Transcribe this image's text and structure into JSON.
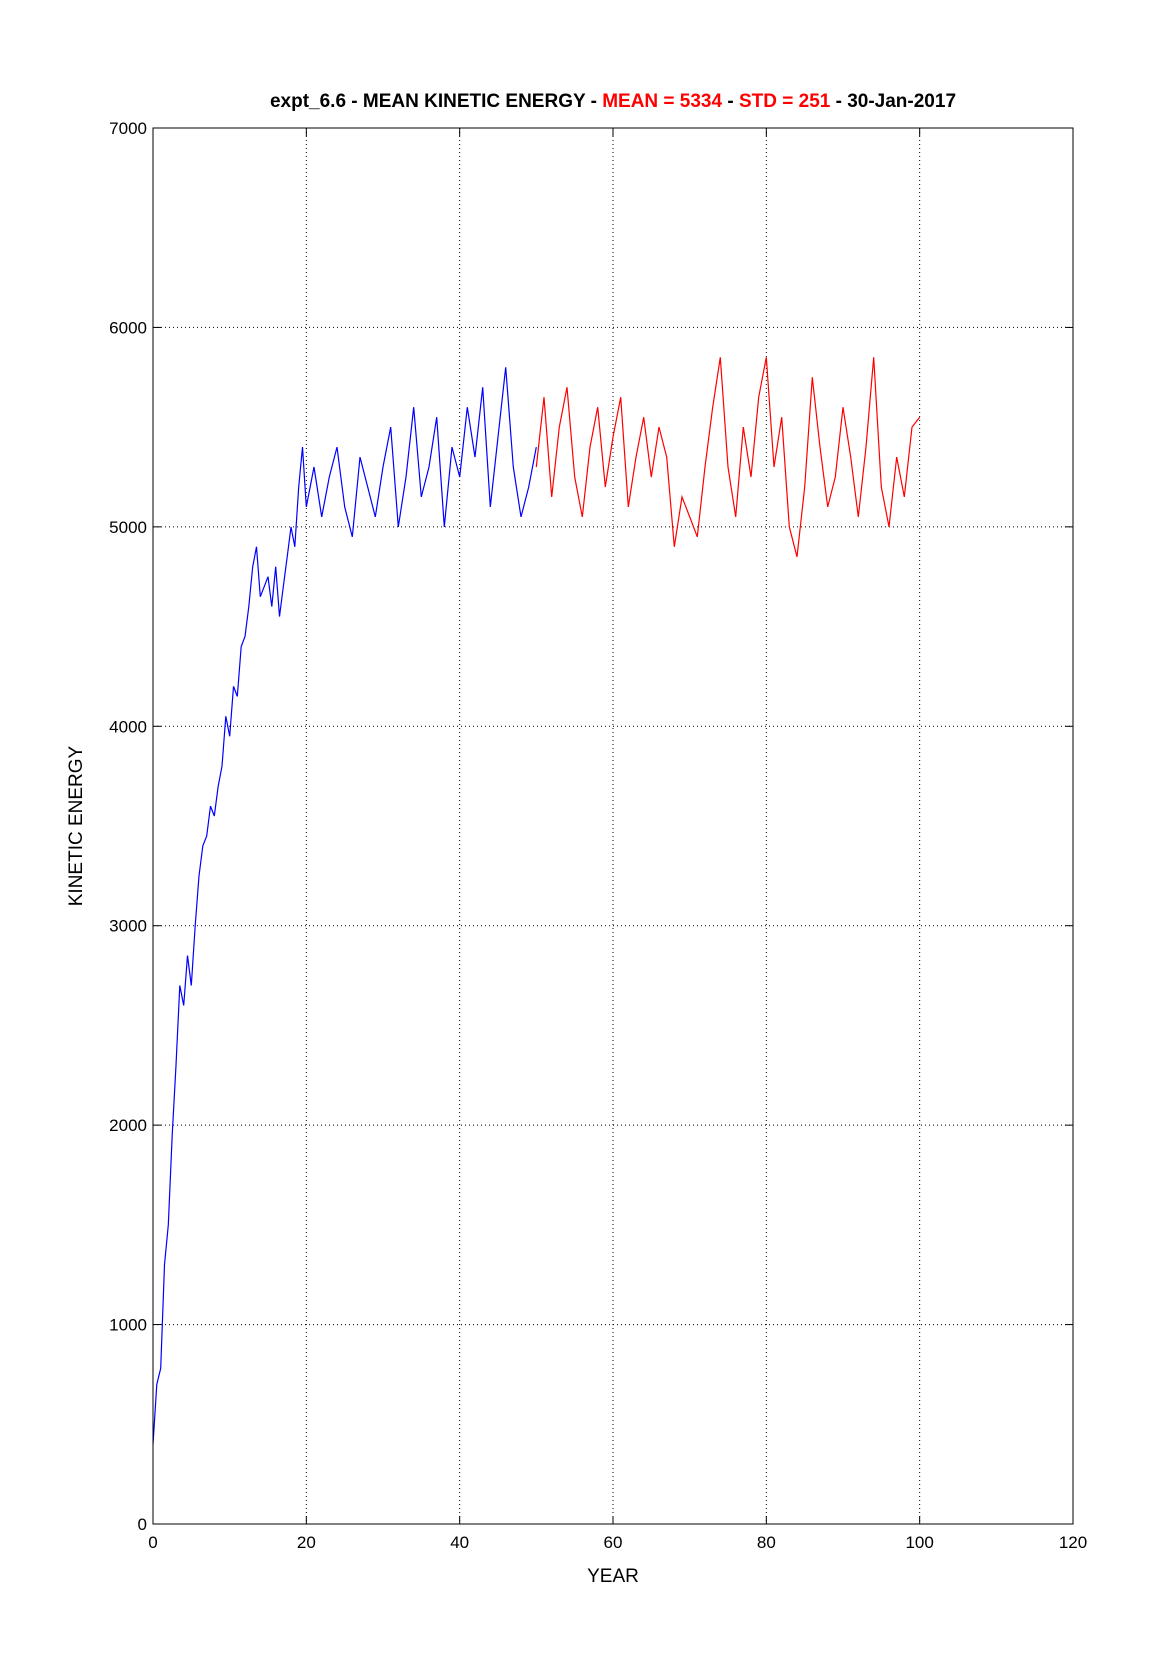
{
  "chart_data": {
    "type": "line",
    "title_parts": [
      {
        "text": "expt_6.6 - MEAN KINETIC ENERGY - ",
        "color": "#000000"
      },
      {
        "text": "MEAN = 5334",
        "color": "#ff0000"
      },
      {
        "text": " - ",
        "color": "#000000"
      },
      {
        "text": "STD = 251",
        "color": "#ff0000"
      },
      {
        "text": " - 30-Jan-2017",
        "color": "#000000"
      }
    ],
    "xlabel": "YEAR",
    "ylabel": "KINETIC ENERGY",
    "xlim": [
      0,
      120
    ],
    "ylim": [
      0,
      7000
    ],
    "xticks": [
      0,
      20,
      40,
      60,
      80,
      100,
      120
    ],
    "yticks": [
      0,
      1000,
      2000,
      3000,
      4000,
      5000,
      6000,
      7000
    ],
    "grid": true,
    "series": [
      {
        "color": "#0000ff",
        "x": [
          0,
          0.5,
          1,
          1.5,
          2,
          2.5,
          3,
          3.5,
          4,
          4.5,
          5,
          5.5,
          6,
          6.5,
          7,
          7.5,
          8,
          8.5,
          9,
          9.5,
          10,
          10.5,
          11,
          11.5,
          12,
          12.5,
          13,
          13.5,
          14,
          14.5,
          15,
          15.5,
          16,
          16.5,
          17,
          17.5,
          18,
          18.5,
          19,
          19.5,
          20,
          21,
          22,
          23,
          24,
          25,
          26,
          27,
          28,
          29,
          30,
          31,
          32,
          33,
          34,
          35,
          36,
          37,
          38,
          39,
          40,
          41,
          42,
          43,
          44,
          45,
          46,
          47,
          48,
          49,
          50
        ],
        "values": [
          400,
          700,
          780,
          1300,
          1500,
          1950,
          2300,
          2700,
          2600,
          2850,
          2700,
          3000,
          3250,
          3400,
          3450,
          3600,
          3550,
          3700,
          3800,
          4050,
          3950,
          4200,
          4150,
          4400,
          4450,
          4600,
          4800,
          4900,
          4650,
          4700,
          4750,
          4600,
          4800,
          4550,
          4700,
          4850,
          5000,
          4900,
          5200,
          5400,
          5100,
          5300,
          5050,
          5250,
          5400,
          5100,
          4950,
          5350,
          5200,
          5050,
          5300,
          5500,
          5000,
          5250,
          5600,
          5150,
          5300,
          5550,
          5000,
          5400,
          5250,
          5600,
          5350,
          5700,
          5100,
          5450,
          5800,
          5300,
          5050,
          5200,
          5400
        ]
      },
      {
        "color": "#ff0000",
        "x": [
          50,
          51,
          52,
          53,
          54,
          55,
          56,
          57,
          58,
          59,
          60,
          61,
          62,
          63,
          64,
          65,
          66,
          67,
          68,
          69,
          70,
          71,
          72,
          73,
          74,
          75,
          76,
          77,
          78,
          79,
          80,
          81,
          82,
          83,
          84,
          85,
          86,
          87,
          88,
          89,
          90,
          91,
          92,
          93,
          94,
          95,
          96,
          97,
          98,
          99,
          100
        ],
        "values": [
          5300,
          5650,
          5150,
          5500,
          5700,
          5250,
          5050,
          5400,
          5600,
          5200,
          5450,
          5650,
          5100,
          5350,
          5550,
          5250,
          5500,
          5350,
          4900,
          5150,
          5050,
          4950,
          5300,
          5600,
          5850,
          5300,
          5050,
          5500,
          5250,
          5650,
          5850,
          5300,
          5550,
          5000,
          4850,
          5200,
          5750,
          5400,
          5100,
          5250,
          5600,
          5350,
          5050,
          5400,
          5850,
          5200,
          5000,
          5350,
          5150,
          5500,
          5550
        ]
      }
    ]
  }
}
